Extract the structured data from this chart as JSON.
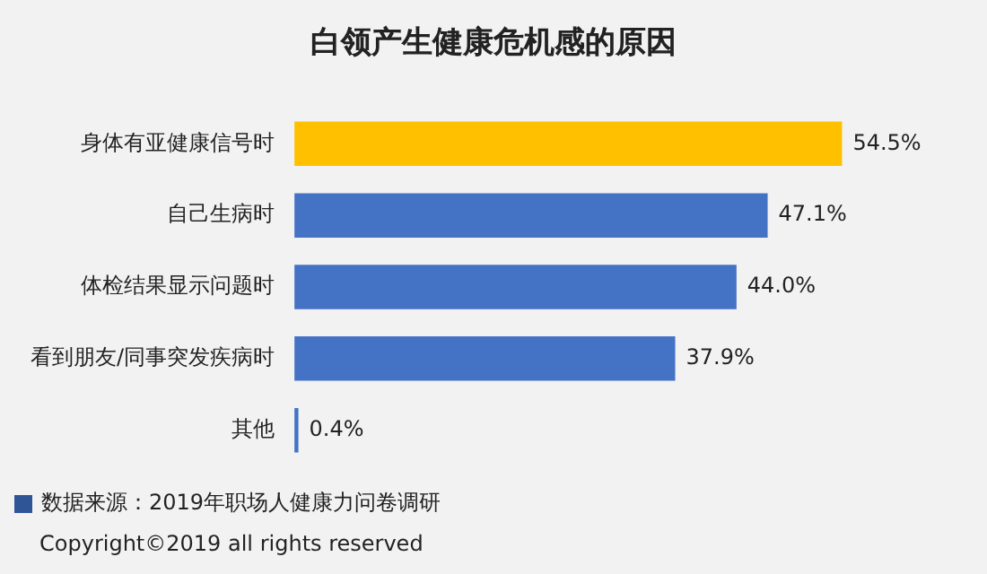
{
  "chart_data": {
    "type": "bar",
    "orientation": "horizontal",
    "title": "白领产生健康危机感的原因",
    "categories": [
      "身体有亚健康信号时",
      "自己生病时",
      "体检结果显示问题时",
      "看到朋友/同事突发疾病时",
      "其他"
    ],
    "values": [
      54.5,
      47.1,
      44.0,
      37.9,
      0.4
    ],
    "colors": [
      "#ffc000",
      "#4472c4",
      "#4472c4",
      "#4472c4",
      "#4472c4"
    ],
    "value_labels": [
      "54.5%",
      "47.1%",
      "44.0%",
      "37.9%",
      "0.4%"
    ],
    "annotations": [
      "数据来源：2019年职场人健康力问卷调研",
      "Copyright©2019 all rights reserved"
    ]
  }
}
